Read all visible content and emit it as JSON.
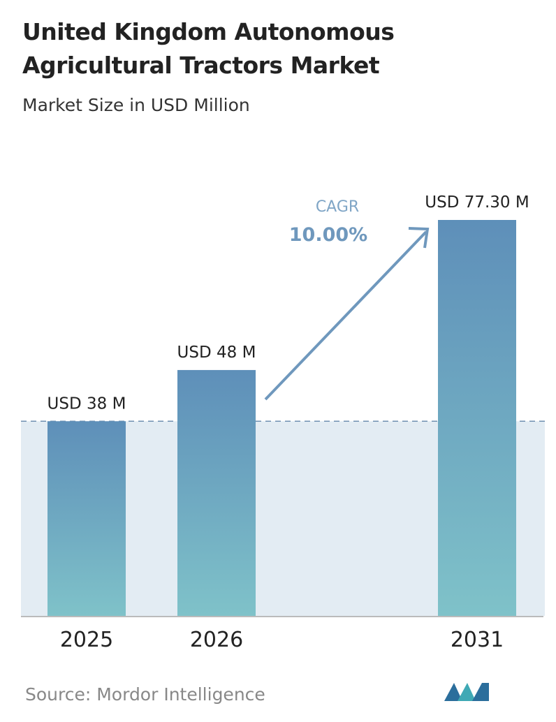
{
  "chart_data": {
    "type": "bar",
    "title": "United Kingdom Autonomous Agricultural Tractors Market",
    "subtitle": "Market Size in USD Million",
    "categories": [
      "2025",
      "2026",
      "2031"
    ],
    "values": [
      38,
      48,
      77.3
    ],
    "value_labels": [
      "USD 38 M",
      "USD 48 M",
      "USD 77.30 M"
    ],
    "cagr_label": "CAGR",
    "cagr_value": "10.00%",
    "source": "Source: Mordor Intelligence",
    "color_top": "#5e8fb9",
    "color_bottom": "#7fc2c9"
  }
}
